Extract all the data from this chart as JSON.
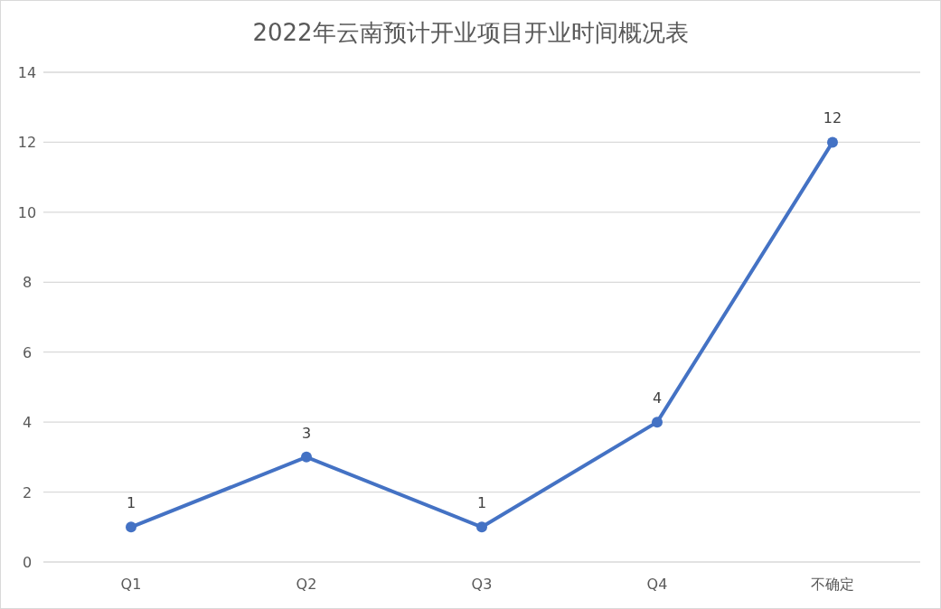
{
  "chart_data": {
    "type": "line",
    "title": "2022年云南预计开业项目开业时间概况表",
    "categories": [
      "Q1",
      "Q2",
      "Q3",
      "Q4",
      "不确定"
    ],
    "values": [
      1,
      3,
      1,
      4,
      12
    ],
    "color": "#4472c4",
    "ylim": [
      0,
      14
    ],
    "yticks": [
      0,
      2,
      4,
      6,
      8,
      10,
      12,
      14
    ],
    "grid": "y",
    "data_labels": true,
    "marker": "circle",
    "line_style": "solid",
    "legend": false
  }
}
